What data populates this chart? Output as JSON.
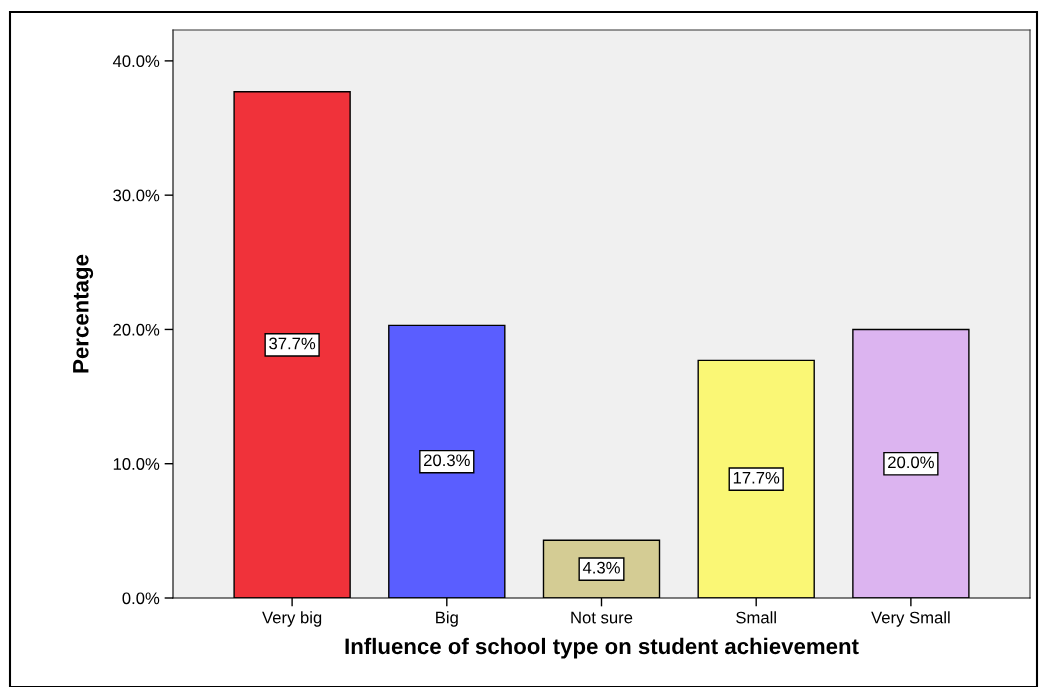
{
  "chart_data": {
    "type": "bar",
    "xlabel": "Influence of school type on student achievement",
    "ylabel": "Percentage",
    "categories": [
      "Very big",
      "Big",
      "Not sure",
      "Small",
      "Very Small"
    ],
    "values": [
      37.7,
      20.3,
      4.3,
      17.7,
      20.0
    ],
    "value_labels": [
      "37.7%",
      "20.3%",
      "4.3%",
      "17.7%",
      "20.0%"
    ],
    "colors": [
      "#f0323a",
      "#5a5eff",
      "#d4cc94",
      "#faf775",
      "#dcb4f0"
    ],
    "ylim": [
      0,
      42.3
    ],
    "yticks": [
      {
        "value": 0,
        "label": "0.0%"
      },
      {
        "value": 10,
        "label": "10.0%"
      },
      {
        "value": 20,
        "label": "20.0%"
      },
      {
        "value": 30,
        "label": "30.0%"
      },
      {
        "value": 40,
        "label": "40.0%"
      }
    ],
    "grid": false
  }
}
